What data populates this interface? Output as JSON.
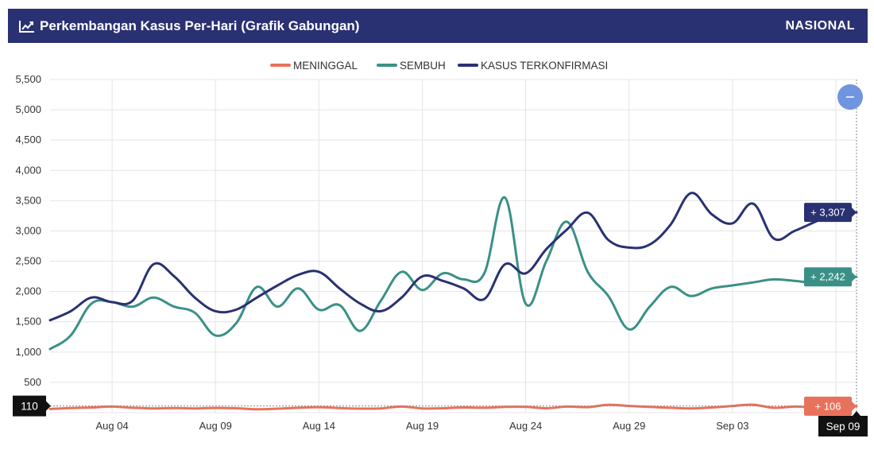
{
  "header": {
    "title": "Perkembangan Kasus Per-Hari (Grafik Gabungan)",
    "region": "NASIONAL",
    "icon": "chart-line-icon",
    "background": "#2a3172"
  },
  "zoom_button": {
    "icon": "minus-icon",
    "color": "#6f95e0"
  },
  "crosshair": {
    "y_label": "110",
    "x_label": "Sep 09"
  },
  "chart_data": {
    "type": "line",
    "ylim": [
      0,
      5500
    ],
    "yticks": [
      0,
      500,
      1000,
      1500,
      2000,
      2500,
      3000,
      3500,
      4000,
      4500,
      5000,
      5500
    ],
    "ytick_labels": [
      "0",
      "500",
      "1,000",
      "1,500",
      "2,000",
      "2,500",
      "3,000",
      "3,500",
      "4,000",
      "4,500",
      "5,000",
      "5,500"
    ],
    "x": [
      "Aug 01",
      "Aug 02",
      "Aug 03",
      "Aug 04",
      "Aug 05",
      "Aug 06",
      "Aug 07",
      "Aug 08",
      "Aug 09",
      "Aug 10",
      "Aug 11",
      "Aug 12",
      "Aug 13",
      "Aug 14",
      "Aug 15",
      "Aug 16",
      "Aug 17",
      "Aug 18",
      "Aug 19",
      "Aug 20",
      "Aug 21",
      "Aug 22",
      "Aug 23",
      "Aug 24",
      "Aug 25",
      "Aug 26",
      "Aug 27",
      "Aug 28",
      "Aug 29",
      "Aug 30",
      "Aug 31",
      "Sep 01",
      "Sep 02",
      "Sep 03",
      "Sep 04",
      "Sep 05",
      "Sep 06",
      "Sep 07",
      "Sep 08",
      "Sep 09"
    ],
    "xtick_labels": [
      "Aug 04",
      "Aug 09",
      "Aug 14",
      "Aug 19",
      "Aug 24",
      "Aug 29",
      "Sep 03",
      "Sep 08"
    ],
    "legend_position": "top-center",
    "series": [
      {
        "name": "MENINGGAL",
        "color": "#e8715b",
        "values": [
          60,
          75,
          85,
          100,
          80,
          70,
          75,
          70,
          78,
          72,
          55,
          65,
          80,
          90,
          75,
          65,
          70,
          100,
          70,
          72,
          85,
          80,
          95,
          95,
          72,
          100,
          90,
          130,
          110,
          95,
          80,
          70,
          85,
          110,
          130,
          80,
          100,
          85,
          105,
          106
        ],
        "last_label": "+ 106"
      },
      {
        "name": "SEMBUH",
        "color": "#3a9087",
        "values": [
          1050,
          1275,
          1800,
          1825,
          1750,
          1900,
          1750,
          1650,
          1275,
          1475,
          2075,
          1750,
          2050,
          1700,
          1775,
          1350,
          1850,
          2325,
          2025,
          2300,
          2200,
          2300,
          3550,
          1800,
          2500,
          3150,
          2325,
          1925,
          1375,
          1750,
          2075,
          1925,
          2050,
          2100,
          2150,
          2200,
          2175,
          2150,
          2200,
          2242
        ],
        "last_label": "+ 2,242"
      },
      {
        "name": "KASUS TERKONFIRMASI",
        "color": "#2a3172",
        "values": [
          1525,
          1675,
          1900,
          1825,
          1850,
          2450,
          2250,
          1900,
          1675,
          1700,
          1900,
          2100,
          2275,
          2325,
          2050,
          1800,
          1675,
          1900,
          2250,
          2175,
          2050,
          1875,
          2450,
          2300,
          2700,
          3025,
          3300,
          2850,
          2725,
          2775,
          3100,
          3625,
          3275,
          3125,
          3450,
          2875,
          3000,
          3150,
          3300,
          3307
        ],
        "last_label": "+ 3,307"
      }
    ]
  }
}
